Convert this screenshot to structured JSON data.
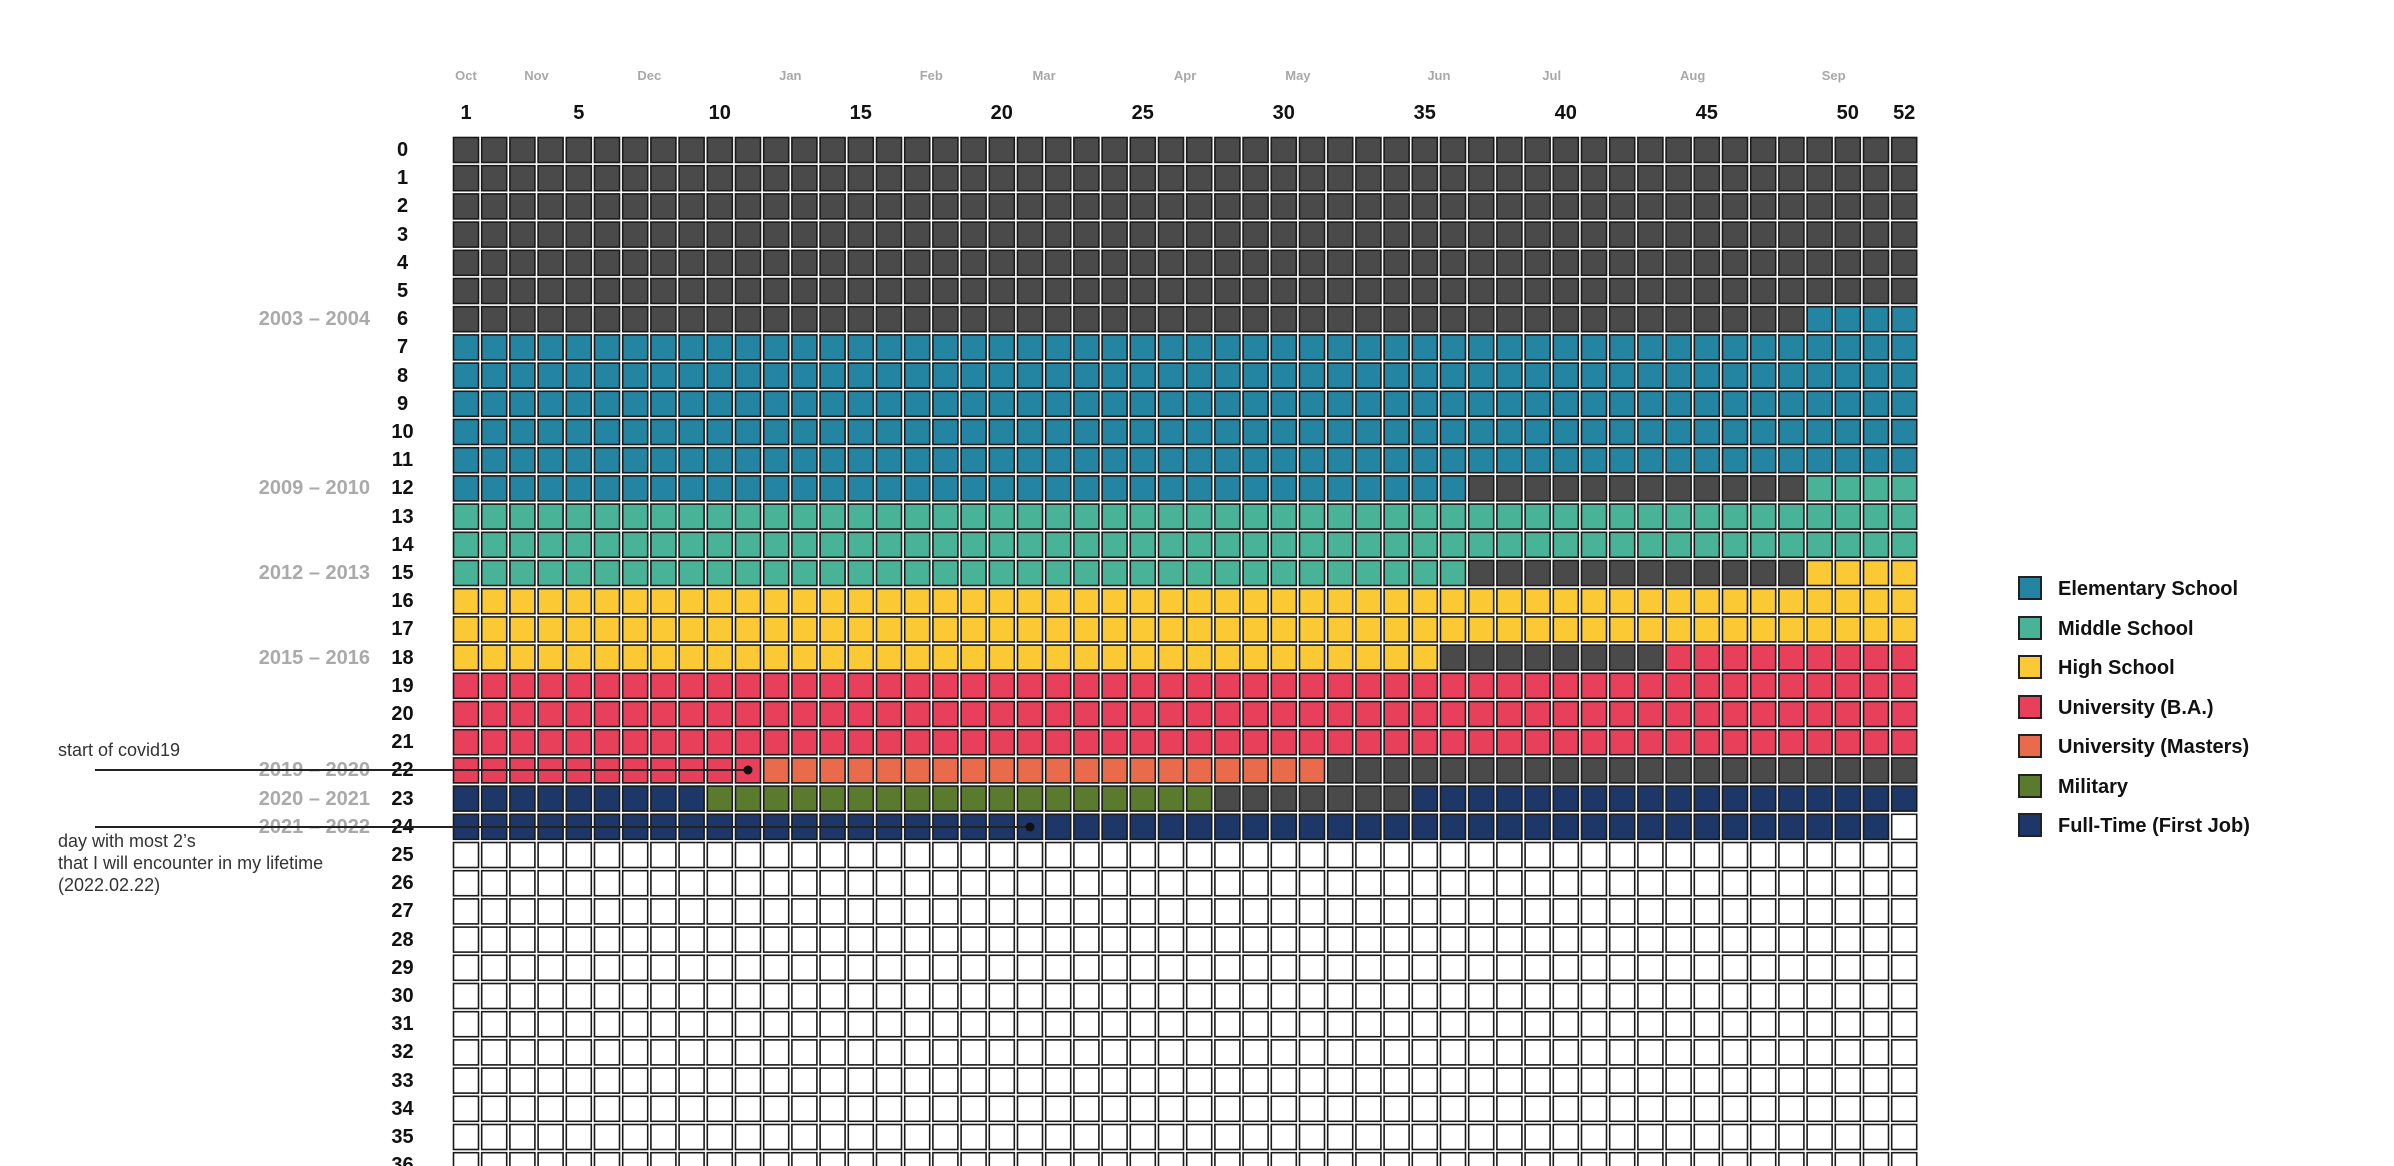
{
  "chart_data": {
    "type": "heatmap",
    "title": "",
    "months": [
      "Oct",
      "Nov",
      "Dec",
      "Jan",
      "Feb",
      "Mar",
      "Apr",
      "May",
      "Jun",
      "Jul",
      "Aug",
      "Sep"
    ],
    "week_ticks": [
      "1",
      "5",
      "10",
      "15",
      "20",
      "25",
      "30",
      "35",
      "40",
      "45",
      "50",
      "52"
    ],
    "weeks_per_year": 52,
    "age_rows_visible": 37,
    "age_labels": [
      "0",
      "1",
      "2",
      "3",
      "4",
      "5",
      "6",
      "7",
      "8",
      "9",
      "10",
      "11",
      "12",
      "13",
      "14",
      "15",
      "16",
      "17",
      "18",
      "19",
      "20",
      "21",
      "22",
      "23",
      "24",
      "25",
      "26",
      "27",
      "28",
      "29",
      "30",
      "31",
      "32",
      "33",
      "34",
      "35",
      "36"
    ],
    "year_labels": [
      {
        "age": 6,
        "text": "2003 – 2004"
      },
      {
        "age": 12,
        "text": "2009 – 2010"
      },
      {
        "age": 15,
        "text": "2012 – 2013"
      },
      {
        "age": 18,
        "text": "2015 – 2016"
      },
      {
        "age": 22,
        "text": "2019 – 2020"
      },
      {
        "age": 23,
        "text": "2020 – 2021"
      },
      {
        "age": 24,
        "text": "2021 – 2022"
      }
    ],
    "categories": [
      {
        "key": "elementary",
        "label": "Elementary School",
        "color": "#2385a2"
      },
      {
        "key": "middle",
        "label": "Middle School",
        "color": "#48b396"
      },
      {
        "key": "high",
        "label": "High School",
        "color": "#fbc933"
      },
      {
        "key": "ba",
        "label": "University (B.A.)",
        "color": "#e83f5b"
      },
      {
        "key": "masters",
        "label": "University (Masters)",
        "color": "#ea6b4b"
      },
      {
        "key": "military",
        "label": "Military",
        "color": "#5a7a2e"
      },
      {
        "key": "job",
        "label": "Full-Time (First Job)",
        "color": "#1c3768"
      }
    ],
    "lived_color": "#4a4a4a",
    "future_color": "#ffffff",
    "segments": [
      {
        "from_age": 0,
        "from_week": 1,
        "to_age": 6,
        "to_week": 48,
        "category": "lived"
      },
      {
        "from_age": 6,
        "from_week": 49,
        "to_age": 12,
        "to_week": 36,
        "category": "elementary"
      },
      {
        "from_age": 12,
        "from_week": 37,
        "to_age": 12,
        "to_week": 48,
        "category": "lived"
      },
      {
        "from_age": 12,
        "from_week": 49,
        "to_age": 15,
        "to_week": 36,
        "category": "middle"
      },
      {
        "from_age": 15,
        "from_week": 37,
        "to_age": 15,
        "to_week": 48,
        "category": "lived"
      },
      {
        "from_age": 15,
        "from_week": 49,
        "to_age": 18,
        "to_week": 35,
        "category": "high"
      },
      {
        "from_age": 18,
        "from_week": 36,
        "to_age": 18,
        "to_week": 43,
        "category": "lived"
      },
      {
        "from_age": 18,
        "from_week": 44,
        "to_age": 22,
        "to_week": 11,
        "category": "ba"
      },
      {
        "from_age": 22,
        "from_week": 12,
        "to_age": 22,
        "to_week": 31,
        "category": "masters"
      },
      {
        "from_age": 22,
        "from_week": 32,
        "to_age": 22,
        "to_week": 52,
        "category": "lived"
      },
      {
        "from_age": 23,
        "from_week": 1,
        "to_age": 23,
        "to_week": 9,
        "category": "job"
      },
      {
        "from_age": 23,
        "from_week": 10,
        "to_age": 23,
        "to_week": 27,
        "category": "military"
      },
      {
        "from_age": 23,
        "from_week": 28,
        "to_age": 23,
        "to_week": 34,
        "category": "lived"
      },
      {
        "from_age": 23,
        "from_week": 35,
        "to_age": 24,
        "to_week": 51,
        "category": "job"
      }
    ],
    "annotations": [
      {
        "lines": [
          "start of covid19"
        ],
        "age": 22,
        "week": 11
      },
      {
        "lines": [
          "day with most 2’s",
          "that I will encounter in my lifetime",
          "(2022.02.22)"
        ],
        "age": 24,
        "week": 21
      }
    ],
    "legend_position": "right"
  }
}
